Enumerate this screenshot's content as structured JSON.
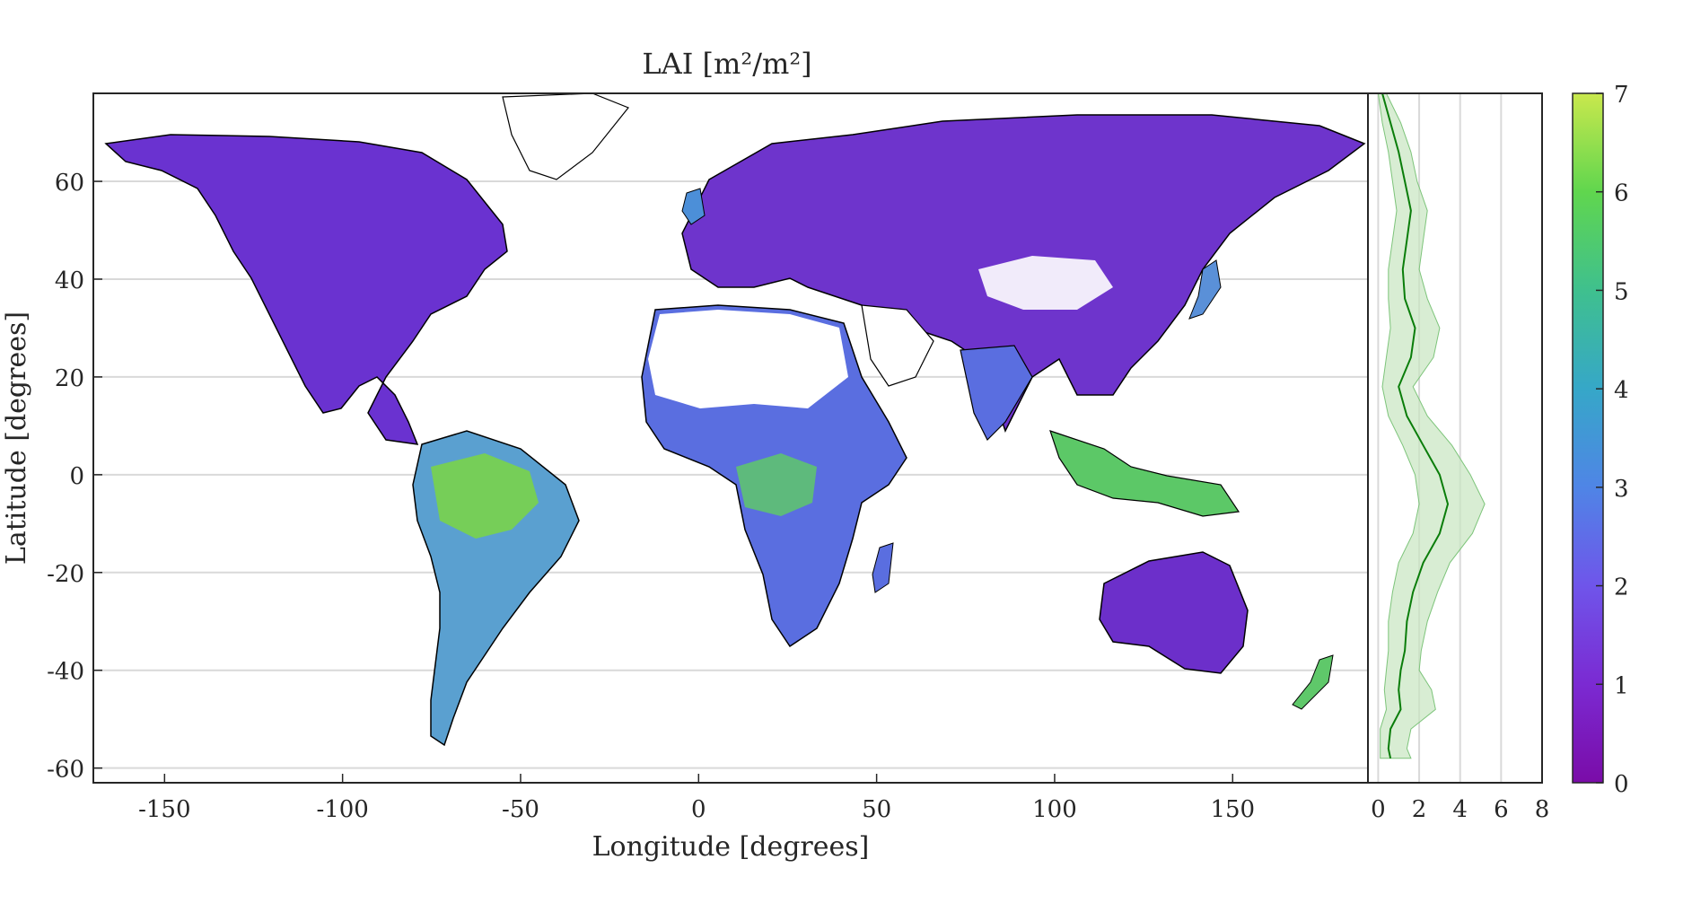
{
  "map": {
    "title": "LAI [m²/m²]",
    "xlabel": "Longitude [degrees]",
    "ylabel": "Latitude [degrees]",
    "xlim": [
      -170,
      188
    ],
    "ylim": [
      -63,
      78
    ],
    "xticks": [
      -150,
      -100,
      -50,
      0,
      50,
      100,
      150
    ],
    "xtick_labels": [
      "-150",
      "-100",
      "-50",
      "0",
      "50",
      "100",
      "150"
    ],
    "yticks": [
      60,
      40,
      20,
      0,
      -20,
      -40,
      -60
    ],
    "ytick_labels": [
      "60",
      "40",
      "20",
      "0",
      "-20",
      "-40",
      "-60"
    ],
    "grid": "horizontal",
    "colors": {
      "land_low": "#7b1fb8",
      "land_mid": "#4a7de0",
      "land_high": "#7ad83f",
      "coast": "#000000",
      "grid": "#d9d9d9"
    }
  },
  "profile": {
    "xlim": [
      -0.5,
      8
    ],
    "xticks": [
      0,
      2,
      4,
      6,
      8
    ],
    "xtick_labels": [
      "0",
      "2",
      "4",
      "6",
      "8"
    ],
    "line_color": "#0a7d0a",
    "band_color": "#c8e6c0",
    "latitudes": [
      78,
      72,
      66,
      60,
      54,
      48,
      42,
      36,
      30,
      24,
      18,
      12,
      6,
      0,
      -6,
      -12,
      -18,
      -24,
      -30,
      -36,
      -40,
      -44,
      -48,
      -52,
      -56,
      -58
    ],
    "mean": [
      0.2,
      0.6,
      1.0,
      1.3,
      1.6,
      1.4,
      1.2,
      1.3,
      1.8,
      1.6,
      1.0,
      1.4,
      2.2,
      3.0,
      3.4,
      3.0,
      2.2,
      1.7,
      1.4,
      1.3,
      1.1,
      1.0,
      1.1,
      0.6,
      0.5,
      0.6
    ],
    "low": [
      0.0,
      0.2,
      0.5,
      0.7,
      0.9,
      0.7,
      0.5,
      0.5,
      0.6,
      0.4,
      0.2,
      0.5,
      1.2,
      1.8,
      2.0,
      1.7,
      1.0,
      0.7,
      0.5,
      0.5,
      0.4,
      0.3,
      0.4,
      0.1,
      0.1,
      0.1
    ],
    "high": [
      0.4,
      1.1,
      1.6,
      1.9,
      2.4,
      2.2,
      2.0,
      2.4,
      3.0,
      2.7,
      1.7,
      2.4,
      3.6,
      4.5,
      5.2,
      4.6,
      3.5,
      2.9,
      2.4,
      2.1,
      2.0,
      2.6,
      2.8,
      1.6,
      1.4,
      1.6
    ]
  },
  "colorbar": {
    "min": 0,
    "max": 7,
    "ticks": [
      0,
      1,
      2,
      3,
      4,
      5,
      6,
      7
    ],
    "tick_labels": [
      "0",
      "1",
      "2",
      "3",
      "4",
      "5",
      "6",
      "7"
    ],
    "stops": [
      "#7a0ca8",
      "#7b2ad2",
      "#6f55ea",
      "#4f85e6",
      "#36a7c8",
      "#3fc08e",
      "#60d64e",
      "#c9e84d"
    ]
  }
}
